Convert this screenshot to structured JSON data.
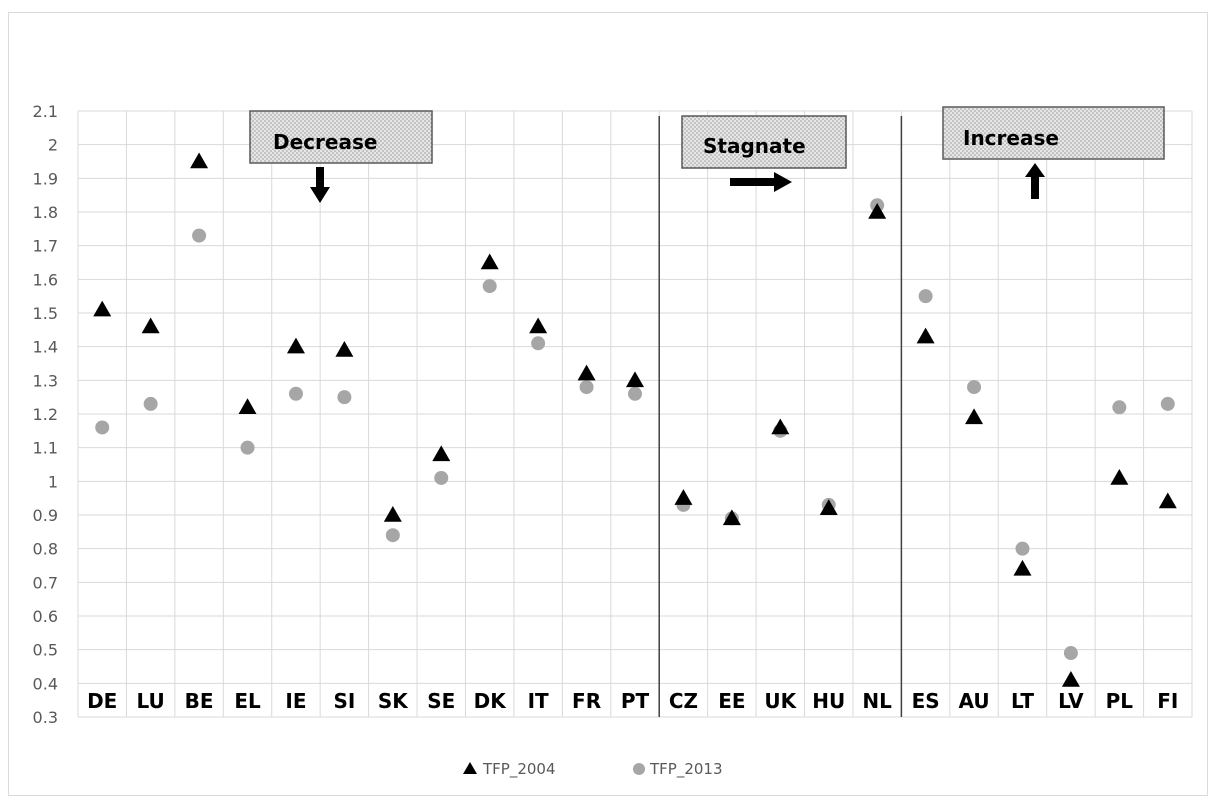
{
  "chart_data": {
    "type": "scatter",
    "title": "",
    "xlabel": "",
    "ylabel": "",
    "ylim": [
      0.3,
      2.1
    ],
    "yticks": [
      "0.3",
      "0.4",
      "0.5",
      "0.6",
      "0.7",
      "0.8",
      "0.9",
      "1",
      "1.1",
      "1.2",
      "1.3",
      "1.4",
      "1.5",
      "1.6",
      "1.7",
      "1.8",
      "1.9",
      "2",
      "2.1"
    ],
    "categories": [
      "DE",
      "LU",
      "BE",
      "EL",
      "IE",
      "SI",
      "SK",
      "SE",
      "DK",
      "IT",
      "FR",
      "PT",
      "CZ",
      "EE",
      "UK",
      "HU",
      "NL",
      "ES",
      "AU",
      "LT",
      "LV",
      "PL",
      "FI"
    ],
    "grid": true,
    "legend_position": "bottom",
    "series": [
      {
        "name": "TFP_2004",
        "marker": "triangle",
        "color": "#000000",
        "values": [
          1.51,
          1.46,
          1.95,
          1.22,
          1.4,
          1.39,
          0.9,
          1.08,
          1.65,
          1.46,
          1.32,
          1.3,
          0.95,
          0.89,
          1.16,
          0.92,
          1.8,
          1.43,
          1.19,
          0.74,
          0.41,
          1.01,
          0.94
        ]
      },
      {
        "name": "TFP_2013",
        "marker": "circle",
        "color": "#a6a6a6",
        "values": [
          1.16,
          1.23,
          1.73,
          1.1,
          1.26,
          1.25,
          0.84,
          1.01,
          1.58,
          1.41,
          1.28,
          1.26,
          0.93,
          0.89,
          1.15,
          0.93,
          1.82,
          1.55,
          1.28,
          0.8,
          0.49,
          1.22,
          1.23
        ]
      }
    ],
    "annotations": [
      {
        "label": "Decrease",
        "arrow": "down"
      },
      {
        "label": "Stagnate",
        "arrow": "right"
      },
      {
        "label": "Increase",
        "arrow": "up"
      }
    ],
    "group_dividers_after": [
      "PT",
      "NL"
    ]
  }
}
